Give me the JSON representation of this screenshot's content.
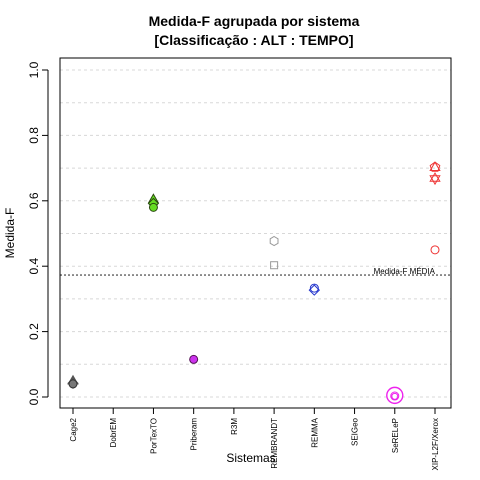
{
  "chart_data": {
    "type": "scatter",
    "title": "Medida-F agrupada por sistema",
    "subtitle": "[Classificação : ALT : TEMPO]",
    "xlabel": "Sistemas",
    "ylabel": "Medida-F",
    "ylim": [
      0,
      1
    ],
    "yticks": [
      "0.0",
      "0.2",
      "0.4",
      "0.6",
      "0.8",
      "1.0"
    ],
    "categories": [
      "Cage2",
      "DobrEM",
      "PorTexTO",
      "Priberam",
      "R3M",
      "REMBRANDT",
      "REMMA",
      "SEIGeo",
      "SeRELeP",
      "XIP-L2F/Xerox"
    ],
    "grid": true,
    "reference_line": {
      "value": 0.373,
      "label": "Medida-F MÉDIA"
    },
    "points": [
      {
        "category": "Cage2",
        "y": 0.045,
        "shape": "triangle",
        "color": "#555555",
        "fill": "#555555"
      },
      {
        "category": "Cage2",
        "y": 0.042,
        "shape": "diamond",
        "color": "#555555",
        "fill": "#555555"
      },
      {
        "category": "Cage2",
        "y": 0.04,
        "shape": "circle",
        "color": "#333333",
        "fill": "#777777"
      },
      {
        "category": "PorTexTO",
        "y": 0.6,
        "shape": "triangle",
        "color": "#2a4a10",
        "fill": "#66dd22"
      },
      {
        "category": "PorTexTO",
        "y": 0.592,
        "shape": "diamond",
        "color": "#2a4a10",
        "fill": "#66dd22"
      },
      {
        "category": "PorTexTO",
        "y": 0.58,
        "shape": "circle",
        "color": "#2a4a10",
        "fill": "#66dd22"
      },
      {
        "category": "Priberam",
        "y": 0.115,
        "shape": "circle",
        "color": "#551155",
        "fill": "#cc33ee"
      },
      {
        "category": "REMBRANDT",
        "y": 0.477,
        "shape": "hexagon",
        "color": "#999999",
        "fill": "none"
      },
      {
        "category": "REMBRANDT",
        "y": 0.403,
        "shape": "square",
        "color": "#999999",
        "fill": "none"
      },
      {
        "category": "REMMA",
        "y": 0.333,
        "shape": "circle",
        "color": "#2233cc",
        "fill": "none"
      },
      {
        "category": "REMMA",
        "y": 0.327,
        "shape": "diamond",
        "color": "#2233cc",
        "fill": "none"
      },
      {
        "category": "SeRELeP",
        "y": 0.005,
        "shape": "circle-large",
        "color": "#ee22ee",
        "fill": "none"
      },
      {
        "category": "SeRELeP",
        "y": 0.003,
        "shape": "circle",
        "color": "#ee22ee",
        "fill": "none"
      },
      {
        "category": "SeRELeP",
        "y": 0.002,
        "shape": "circle-small",
        "color": "#ee22ee",
        "fill": "none"
      },
      {
        "category": "XIP-L2F/Xerox",
        "y": 0.703,
        "shape": "pentagon",
        "color": "#ee3333",
        "fill": "none"
      },
      {
        "category": "XIP-L2F/Xerox",
        "y": 0.698,
        "shape": "triangle",
        "color": "#ee3333",
        "fill": "none"
      },
      {
        "category": "XIP-L2F/Xerox",
        "y": 0.668,
        "shape": "star-of-david",
        "color": "#ee3333",
        "fill": "none"
      },
      {
        "category": "XIP-L2F/Xerox",
        "y": 0.45,
        "shape": "circle",
        "color": "#ee3333",
        "fill": "none"
      }
    ]
  }
}
